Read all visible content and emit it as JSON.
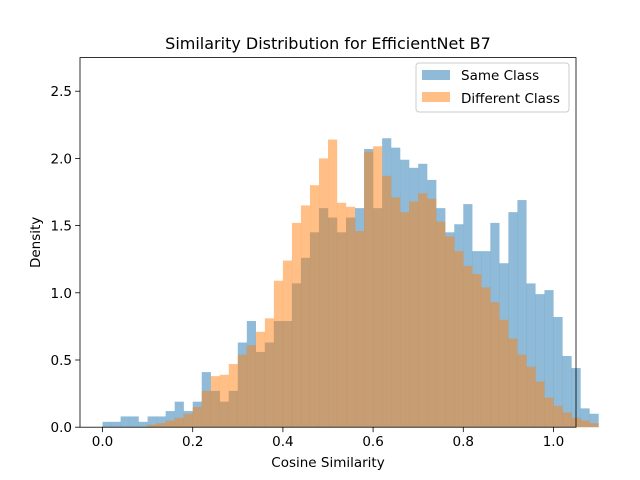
{
  "chart_data": {
    "type": "histogram",
    "title": "Similarity Distribution for EfficientNet B7",
    "xlabel": "Cosine Similarity",
    "ylabel": "Density",
    "xlim": [
      -0.05,
      1.05
    ],
    "ylim": [
      0,
      2.75
    ],
    "xticks": [
      0.0,
      0.2,
      0.4,
      0.6,
      0.8,
      1.0
    ],
    "xtick_labels": [
      "0.0",
      "0.2",
      "0.4",
      "0.6",
      "0.8",
      "1.0"
    ],
    "yticks": [
      0.0,
      0.5,
      1.0,
      1.5,
      2.0,
      2.5
    ],
    "ytick_labels": [
      "0.0",
      "0.5",
      "1.0",
      "1.5",
      "2.0",
      "2.5"
    ],
    "bin_start": 0.0,
    "bin_width": 0.02,
    "legend_position": "top-right",
    "series": [
      {
        "name": "Same Class",
        "color": "#1f77b4",
        "alpha": 0.5,
        "values": [
          0.04,
          0.04,
          0.08,
          0.08,
          0.04,
          0.08,
          0.08,
          0.12,
          0.19,
          0.12,
          0.19,
          0.41,
          0.27,
          0.19,
          0.27,
          0.63,
          0.79,
          0.56,
          0.63,
          0.79,
          0.79,
          1.07,
          1.26,
          1.45,
          1.63,
          1.56,
          1.45,
          1.56,
          1.63,
          2.07,
          1.63,
          2.15,
          2.08,
          1.99,
          1.93,
          1.96,
          1.84,
          1.63,
          1.45,
          1.51,
          1.66,
          1.31,
          1.31,
          1.52,
          1.22,
          1.6,
          1.69,
          1.07,
          0.99,
          1.02,
          0.82,
          0.53,
          0.44,
          0.14,
          0.1
        ]
      },
      {
        "name": "Different Class",
        "color": "#ff7f0e",
        "alpha": 0.5,
        "values": [
          0,
          0,
          0,
          0,
          0,
          0.02,
          0.03,
          0.05,
          0.07,
          0.1,
          0.15,
          0.27,
          0.38,
          0.39,
          0.47,
          0.54,
          0.61,
          0.71,
          0.81,
          1.09,
          1.24,
          1.52,
          1.65,
          1.8,
          2.0,
          2.14,
          1.67,
          1.64,
          1.46,
          2.05,
          2.09,
          1.87,
          1.71,
          1.6,
          1.68,
          1.74,
          1.7,
          1.53,
          1.42,
          1.31,
          1.2,
          1.14,
          1.04,
          0.93,
          0.8,
          0.66,
          0.54,
          0.45,
          0.34,
          0.22,
          0.16,
          0.11,
          0.07,
          0.05,
          0.03
        ]
      }
    ]
  }
}
